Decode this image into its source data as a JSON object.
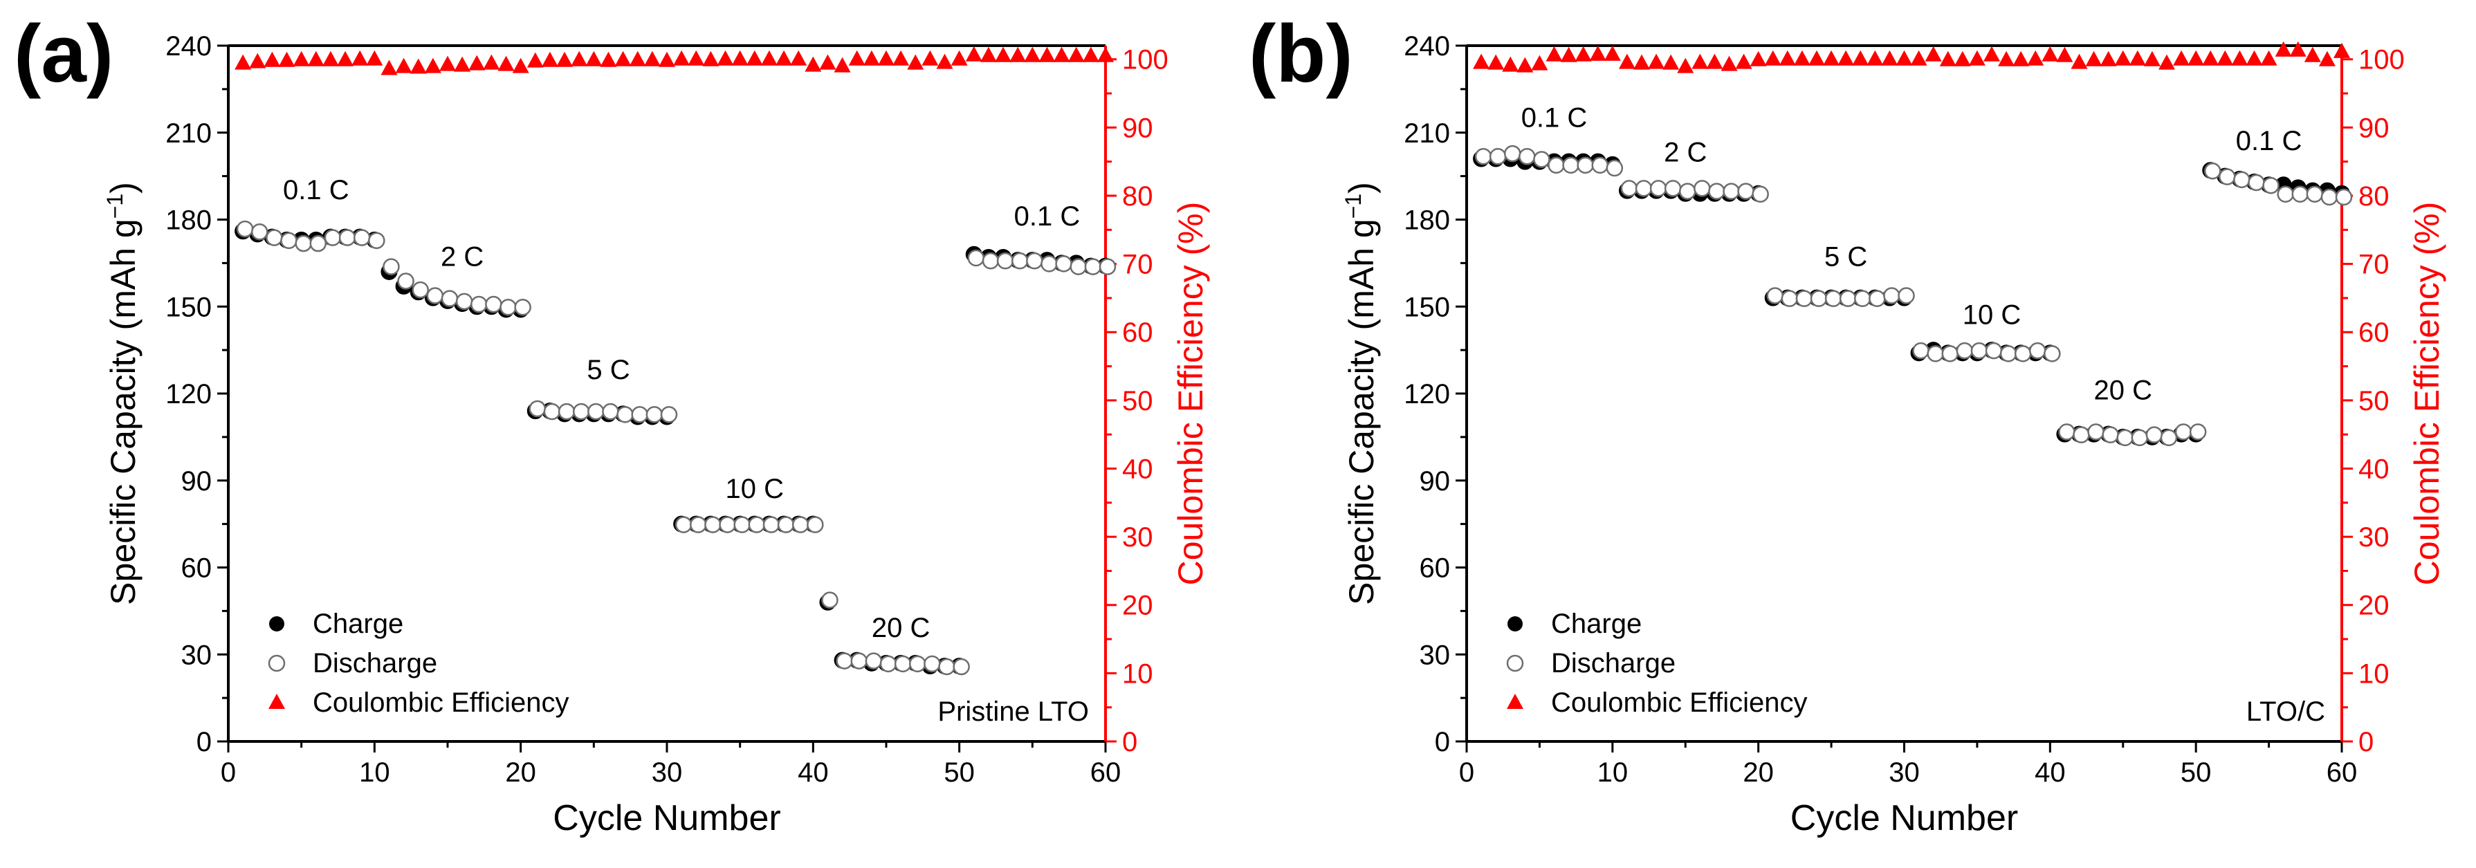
{
  "colors": {
    "axis": "#000000",
    "ce": "#ff0000",
    "marker_stroke": "#6e6e6e",
    "background": "#ffffff"
  },
  "chart_data": [
    {
      "type": "scatter",
      "panel_label": "(a)",
      "sample_label": "Pristine LTO",
      "xlabel": "Cycle Number",
      "ylabel": "Specific Capacity (mAh g",
      "ylabel_superscript": "−1",
      "ylabel_tail": ")",
      "y2label": "Coulombic Efficiency (%)",
      "xlim": [
        0,
        60
      ],
      "ylim": [
        0,
        240
      ],
      "y2lim": [
        0,
        102
      ],
      "xticks": [
        0,
        10,
        20,
        30,
        40,
        50,
        60
      ],
      "yticks": [
        0,
        30,
        60,
        90,
        120,
        150,
        180,
        210,
        240
      ],
      "y2ticks": [
        0,
        10,
        20,
        30,
        40,
        50,
        60,
        70,
        80,
        90,
        100
      ],
      "legend": [
        "Charge",
        "Discharge",
        "Coulombic Efficiency"
      ],
      "legend_position": "bottom-left",
      "rate_labels": [
        {
          "text": "0.1 C",
          "x": 6,
          "y": 187
        },
        {
          "text": "2 C",
          "x": 16,
          "y": 164
        },
        {
          "text": "5 C",
          "x": 26,
          "y": 125
        },
        {
          "text": "10 C",
          "x": 36,
          "y": 84
        },
        {
          "text": "20 C",
          "x": 46,
          "y": 36
        },
        {
          "text": "0.1 C",
          "x": 56,
          "y": 178
        }
      ],
      "series": [
        {
          "name": "Charge",
          "x": [
            1,
            2,
            3,
            4,
            5,
            6,
            7,
            8,
            9,
            10,
            11,
            12,
            13,
            14,
            15,
            16,
            17,
            18,
            19,
            20,
            21,
            22,
            23,
            24,
            25,
            26,
            27,
            28,
            29,
            30,
            31,
            32,
            33,
            34,
            35,
            36,
            37,
            38,
            39,
            40,
            41,
            42,
            43,
            44,
            45,
            46,
            47,
            48,
            49,
            50,
            51,
            52,
            53,
            54,
            55,
            56,
            57,
            58,
            59,
            60
          ],
          "values": [
            176,
            175,
            174,
            173,
            173,
            173,
            174,
            174,
            174,
            173,
            162,
            157,
            155,
            153,
            152,
            151,
            150,
            150,
            149,
            149,
            114,
            114,
            113,
            113,
            113,
            113,
            113,
            112,
            112,
            112,
            75,
            75,
            75,
            75,
            75,
            75,
            75,
            75,
            75,
            75,
            48,
            28,
            28,
            27,
            27,
            27,
            27,
            26,
            26,
            26,
            168,
            167,
            167,
            166,
            166,
            166,
            165,
            165,
            164,
            164
          ]
        },
        {
          "name": "Discharge",
          "x": [
            1,
            2,
            3,
            4,
            5,
            6,
            7,
            8,
            9,
            10,
            11,
            12,
            13,
            14,
            15,
            16,
            17,
            18,
            19,
            20,
            21,
            22,
            23,
            24,
            25,
            26,
            27,
            28,
            29,
            30,
            31,
            32,
            33,
            34,
            35,
            36,
            37,
            38,
            39,
            40,
            41,
            42,
            43,
            44,
            45,
            46,
            47,
            48,
            49,
            50,
            51,
            52,
            53,
            54,
            55,
            56,
            57,
            58,
            59,
            60
          ],
          "values": [
            177,
            176,
            174,
            173,
            172,
            172,
            174,
            174,
            174,
            173,
            164,
            159,
            156,
            154,
            153,
            152,
            151,
            151,
            150,
            150,
            115,
            114,
            114,
            114,
            114,
            114,
            113,
            113,
            113,
            113,
            75,
            75,
            75,
            75,
            75,
            75,
            75,
            75,
            75,
            75,
            49,
            28,
            28,
            28,
            27,
            27,
            27,
            27,
            26,
            26,
            167,
            166,
            166,
            166,
            166,
            165,
            165,
            164,
            164,
            164
          ]
        },
        {
          "name": "Coulombic Efficiency",
          "x": [
            1,
            2,
            3,
            4,
            5,
            6,
            7,
            8,
            9,
            10,
            11,
            12,
            13,
            14,
            15,
            16,
            17,
            18,
            19,
            20,
            21,
            22,
            23,
            24,
            25,
            26,
            27,
            28,
            29,
            30,
            31,
            32,
            33,
            34,
            35,
            36,
            37,
            38,
            39,
            40,
            41,
            42,
            43,
            44,
            45,
            46,
            47,
            48,
            49,
            50,
            51,
            52,
            53,
            54,
            55,
            56,
            57,
            58,
            59,
            60
          ],
          "values": [
            99.4,
            99.6,
            99.8,
            99.8,
            99.9,
            99.9,
            99.9,
            99.9,
            100,
            100,
            98.6,
            98.9,
            98.8,
            98.9,
            99.2,
            99.1,
            99.3,
            99.4,
            99.2,
            98.9,
            99.7,
            99.8,
            99.8,
            99.9,
            99.9,
            99.8,
            99.9,
            99.9,
            99.9,
            99.8,
            100,
            100,
            99.9,
            100,
            100,
            100,
            100,
            100,
            100,
            99.1,
            99.4,
            99,
            100,
            100,
            100,
            100,
            99.4,
            100,
            99.5,
            100,
            100.6,
            100.5,
            100.5,
            100.5,
            100.5,
            100.5,
            100.5,
            100.5,
            100.5,
            100.5
          ]
        }
      ]
    },
    {
      "type": "scatter",
      "panel_label": "(b)",
      "sample_label": "LTO/C",
      "xlabel": "Cycle Number",
      "ylabel": "Specific Capacity (mAh g",
      "ylabel_superscript": "−1",
      "ylabel_tail": ")",
      "y2label": "Coulombic Efficiency (%)",
      "xlim": [
        0,
        60
      ],
      "ylim": [
        0,
        240
      ],
      "y2lim": [
        0,
        102
      ],
      "xticks": [
        0,
        10,
        20,
        30,
        40,
        50,
        60
      ],
      "yticks": [
        0,
        30,
        60,
        90,
        120,
        150,
        180,
        210,
        240
      ],
      "y2ticks": [
        0,
        10,
        20,
        30,
        40,
        50,
        60,
        70,
        80,
        90,
        100
      ],
      "legend": [
        "Charge",
        "Discharge",
        "Coulombic Efficiency"
      ],
      "legend_position": "bottom-left",
      "rate_labels": [
        {
          "text": "0.1 C",
          "x": 6,
          "y": 212
        },
        {
          "text": "2 C",
          "x": 15,
          "y": 200
        },
        {
          "text": "5 C",
          "x": 26,
          "y": 164
        },
        {
          "text": "10 C",
          "x": 36,
          "y": 144
        },
        {
          "text": "20 C",
          "x": 45,
          "y": 118
        },
        {
          "text": "0.1 C",
          "x": 55,
          "y": 204
        }
      ],
      "series": [
        {
          "name": "Charge",
          "x": [
            1,
            2,
            3,
            4,
            5,
            6,
            7,
            8,
            9,
            10,
            11,
            12,
            13,
            14,
            15,
            16,
            17,
            18,
            19,
            20,
            21,
            22,
            23,
            24,
            25,
            26,
            27,
            28,
            29,
            30,
            31,
            32,
            33,
            34,
            35,
            36,
            37,
            38,
            39,
            40,
            41,
            42,
            43,
            44,
            45,
            46,
            47,
            48,
            49,
            50,
            51,
            52,
            53,
            54,
            55,
            56,
            57,
            58,
            59,
            60
          ],
          "values": [
            201,
            201,
            201,
            200,
            200,
            200,
            200,
            200,
            200,
            199,
            190,
            190,
            190,
            190,
            189,
            189,
            189,
            189,
            189,
            189,
            153,
            153,
            153,
            153,
            153,
            153,
            153,
            153,
            153,
            153,
            134,
            135,
            134,
            134,
            134,
            135,
            134,
            134,
            134,
            134,
            106,
            106,
            106,
            106,
            105,
            105,
            105,
            105,
            106,
            106,
            197,
            195,
            194,
            193,
            192,
            192,
            191,
            190,
            190,
            189
          ]
        },
        {
          "name": "Discharge",
          "x": [
            1,
            2,
            3,
            4,
            5,
            6,
            7,
            8,
            9,
            10,
            11,
            12,
            13,
            14,
            15,
            16,
            17,
            18,
            19,
            20,
            21,
            22,
            23,
            24,
            25,
            26,
            27,
            28,
            29,
            30,
            31,
            32,
            33,
            34,
            35,
            36,
            37,
            38,
            39,
            40,
            41,
            42,
            43,
            44,
            45,
            46,
            47,
            48,
            49,
            50,
            51,
            52,
            53,
            54,
            55,
            56,
            57,
            58,
            59,
            60
          ],
          "values": [
            202,
            202,
            203,
            202,
            201,
            199,
            199,
            199,
            199,
            198,
            191,
            191,
            191,
            191,
            190,
            191,
            190,
            190,
            190,
            189,
            154,
            153,
            153,
            153,
            153,
            153,
            153,
            153,
            154,
            154,
            135,
            134,
            134,
            135,
            135,
            135,
            134,
            134,
            135,
            134,
            107,
            106,
            107,
            106,
            105,
            105,
            106,
            105,
            107,
            107,
            197,
            195,
            194,
            193,
            192,
            189,
            189,
            189,
            188,
            188
          ]
        },
        {
          "name": "Coulombic Efficiency",
          "x": [
            1,
            2,
            3,
            4,
            5,
            6,
            7,
            8,
            9,
            10,
            11,
            12,
            13,
            14,
            15,
            16,
            17,
            18,
            19,
            20,
            21,
            22,
            23,
            24,
            25,
            26,
            27,
            28,
            29,
            30,
            31,
            32,
            33,
            34,
            35,
            36,
            37,
            38,
            39,
            40,
            41,
            42,
            43,
            44,
            45,
            46,
            47,
            48,
            49,
            50,
            51,
            52,
            53,
            54,
            55,
            56,
            57,
            58,
            59,
            60
          ],
          "values": [
            99.5,
            99.4,
            99.1,
            99,
            99.3,
            100.6,
            100.5,
            100.6,
            100.7,
            100.7,
            99.5,
            99.4,
            99.5,
            99.4,
            98.9,
            99.5,
            99.5,
            99.2,
            99.5,
            99.9,
            100,
            100,
            100,
            100,
            100,
            100,
            100,
            100,
            100,
            100,
            100,
            100.6,
            99.9,
            99.9,
            100,
            100.6,
            99.9,
            99.9,
            100,
            100.6,
            100.5,
            99.5,
            99.9,
            99.9,
            100,
            100,
            99.9,
            99.4,
            100,
            100,
            100,
            100,
            100,
            100,
            100,
            101.3,
            101.3,
            100.5,
            99.9,
            101.1
          ]
        }
      ]
    }
  ]
}
